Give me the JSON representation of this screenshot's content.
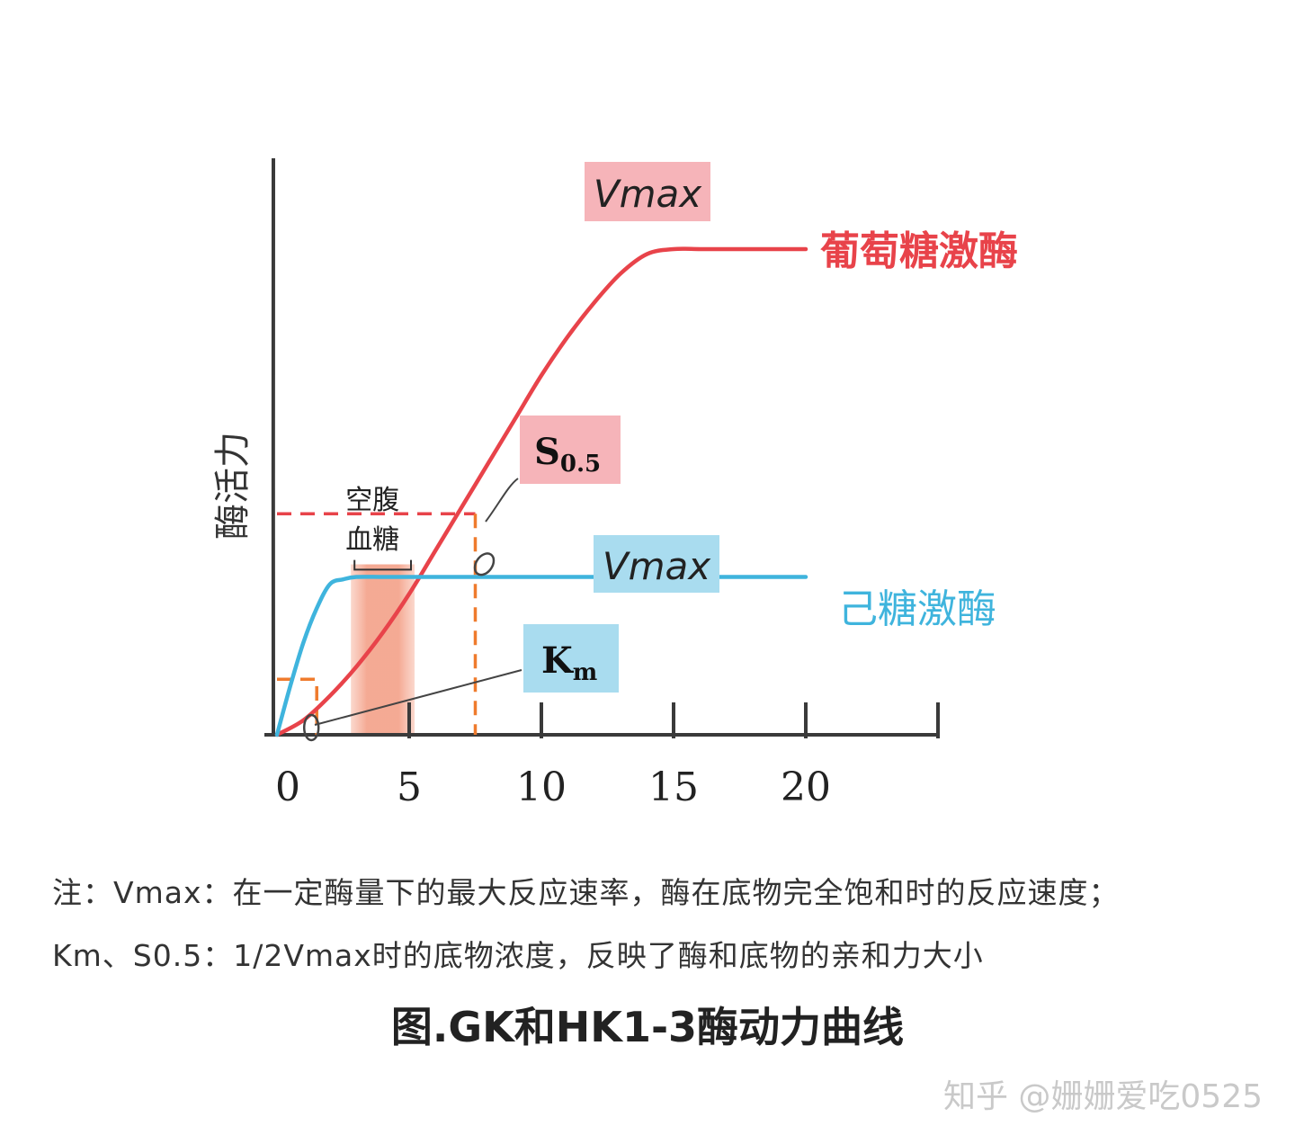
{
  "chart_data": {
    "type": "line",
    "ylabel": "酶活力",
    "xticks": [
      0,
      5,
      10,
      15,
      20
    ],
    "xlim": [
      0,
      25
    ],
    "ylim": [
      0,
      1.1
    ],
    "series": [
      {
        "name": "葡萄糖激酶",
        "color": "#e8434a",
        "x": [
          0,
          1,
          2,
          3,
          4,
          5,
          6,
          7,
          8,
          9,
          10,
          11,
          12,
          13,
          14,
          15,
          16,
          17,
          18,
          19,
          20
        ],
        "y": [
          0,
          0.03,
          0.08,
          0.14,
          0.21,
          0.29,
          0.38,
          0.47,
          0.56,
          0.65,
          0.74,
          0.82,
          0.89,
          0.95,
          0.99,
          1.0,
          1.0,
          1.0,
          1.0,
          1.0,
          1.0
        ],
        "vmax_label": "Vmax",
        "half_label_main": "S",
        "half_label_sub": "0.5",
        "half_x": 7.5,
        "half_y": 0.455
      },
      {
        "name": "己糖激酶",
        "color": "#3fb4dd",
        "x": [
          0,
          0.5,
          1,
          1.5,
          2,
          2.5,
          3,
          4,
          5,
          10,
          15,
          20
        ],
        "y": [
          0,
          0.1,
          0.19,
          0.26,
          0.31,
          0.32,
          0.325,
          0.325,
          0.325,
          0.325,
          0.325,
          0.325
        ],
        "vmax_label": "Vmax",
        "half_label_main": "K",
        "half_label_sub": "m",
        "half_x": 1.3,
        "half_y": 0.12
      }
    ],
    "shaded_range": [
      3,
      5
    ],
    "shaded_label_line1": "空腹",
    "shaded_label_line2": "血糖"
  },
  "notes": {
    "line1": "注：Vmax：在一定酶量下的最大反应速率，酶在底物完全饱和时的反应速度；",
    "line2": "Km、S0.5：1/2Vmax时的底物浓度，反映了酶和底物的亲和力大小"
  },
  "caption": "图.GK和HK1-3酶动力曲线",
  "watermark": "知乎 @姗姗爱吃0525",
  "colors": {
    "gk": "#e8434a",
    "hk": "#3fb4dd",
    "gk_box": "#f6b4b9",
    "hk_box": "#a9dcef",
    "fasting_band": "#f7b6a2",
    "dashes": "#ef7b2d",
    "axis": "#3a3a3a"
  }
}
